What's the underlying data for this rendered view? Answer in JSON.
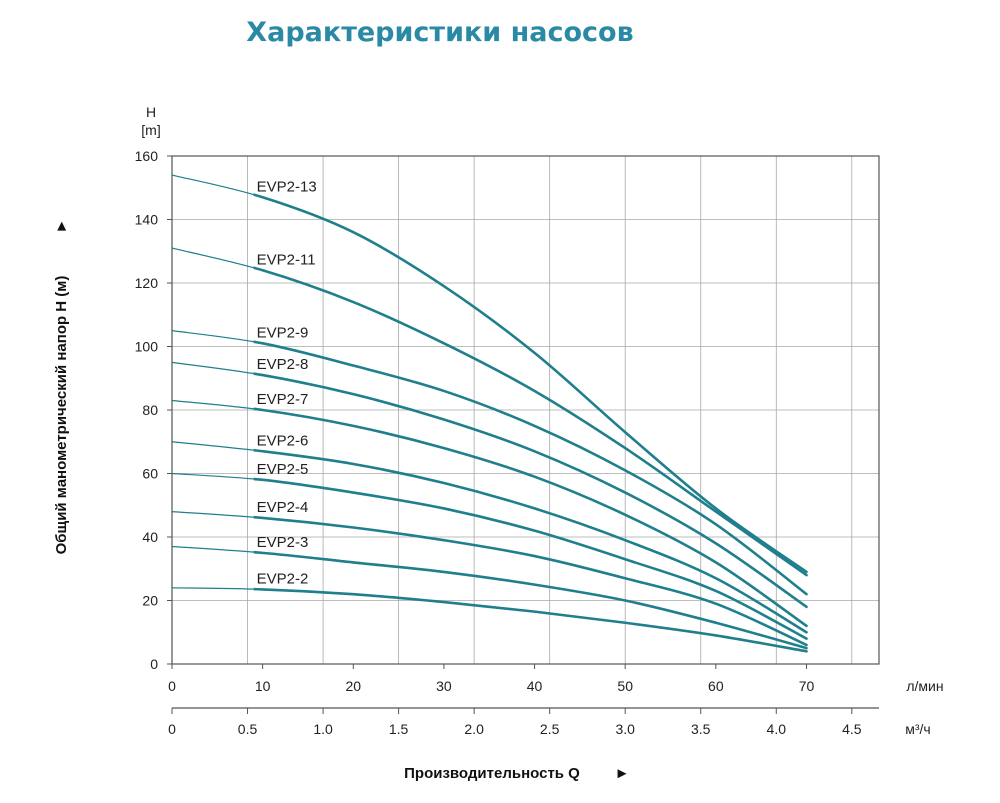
{
  "colors": {
    "title": "#2a8aa6",
    "curve": "#1f7f8c",
    "grid": "#a8a8a8",
    "text": "#222222"
  },
  "chart_data": {
    "type": "line",
    "title": "Характеристики насосов",
    "ylabel": "Общий манометрический напор H (м)",
    "ylabel_arrow": "►",
    "y_unit_symbol": "H",
    "y_unit": "[m]",
    "xlabel": "Производительность Q",
    "xlabel_arrow": "►",
    "x_unit": "л/мин",
    "x2_unit": "м³/ч",
    "xlim": [
      0,
      78
    ],
    "ylim": [
      0,
      160
    ],
    "x_ticks": [
      0,
      10,
      20,
      30,
      40,
      50,
      60,
      70
    ],
    "y_ticks": [
      0,
      20,
      40,
      60,
      80,
      100,
      120,
      140,
      160
    ],
    "x2_ticks": [
      "0",
      "0.5",
      "1.0",
      "1.5",
      "2.0",
      "2.5",
      "3.0",
      "3.5",
      "4.0",
      "4.5"
    ],
    "grid": true,
    "series": [
      {
        "name": "EVP2-13",
        "x": [
          0,
          10,
          20,
          30,
          40,
          50,
          60,
          70
        ],
        "y": [
          154,
          147,
          136,
          119,
          98,
          73,
          49,
          29
        ]
      },
      {
        "name": "EVP2-11",
        "x": [
          0,
          10,
          20,
          30,
          40,
          50,
          60,
          70
        ],
        "y": [
          131,
          124,
          114,
          101,
          86,
          68,
          48,
          28
        ]
      },
      {
        "name": "EVP2-9",
        "x": [
          0,
          10,
          20,
          30,
          40,
          50,
          60,
          70
        ],
        "y": [
          105,
          101,
          94,
          86,
          75,
          61,
          44,
          22
        ]
      },
      {
        "name": "EVP2-8",
        "x": [
          0,
          10,
          20,
          30,
          40,
          50,
          60,
          70
        ],
        "y": [
          95,
          91,
          85,
          77,
          67,
          54,
          38,
          18
        ]
      },
      {
        "name": "EVP2-7",
        "x": [
          0,
          10,
          20,
          30,
          40,
          50,
          60,
          70
        ],
        "y": [
          83,
          80,
          75,
          68,
          59,
          47,
          32,
          12
        ]
      },
      {
        "name": "EVP2-6",
        "x": [
          0,
          10,
          20,
          30,
          40,
          50,
          60,
          70
        ],
        "y": [
          70,
          67,
          63,
          57,
          49,
          39,
          27,
          10
        ]
      },
      {
        "name": "EVP2-5",
        "x": [
          0,
          10,
          20,
          30,
          40,
          50,
          60,
          70
        ],
        "y": [
          60,
          58,
          54,
          49,
          42,
          33,
          23,
          8
        ]
      },
      {
        "name": "EVP2-4",
        "x": [
          0,
          10,
          20,
          30,
          40,
          50,
          60,
          70
        ],
        "y": [
          48,
          46,
          43,
          39,
          34,
          27,
          19,
          6
        ]
      },
      {
        "name": "EVP2-3",
        "x": [
          0,
          10,
          20,
          30,
          40,
          50,
          60,
          70
        ],
        "y": [
          37,
          35,
          32,
          29,
          25,
          20,
          13,
          5
        ]
      },
      {
        "name": "EVP2-2",
        "x": [
          0,
          10,
          20,
          30,
          40,
          50,
          60,
          70
        ],
        "y": [
          24,
          23.5,
          22,
          19.5,
          16.5,
          13,
          9,
          4
        ]
      }
    ]
  }
}
